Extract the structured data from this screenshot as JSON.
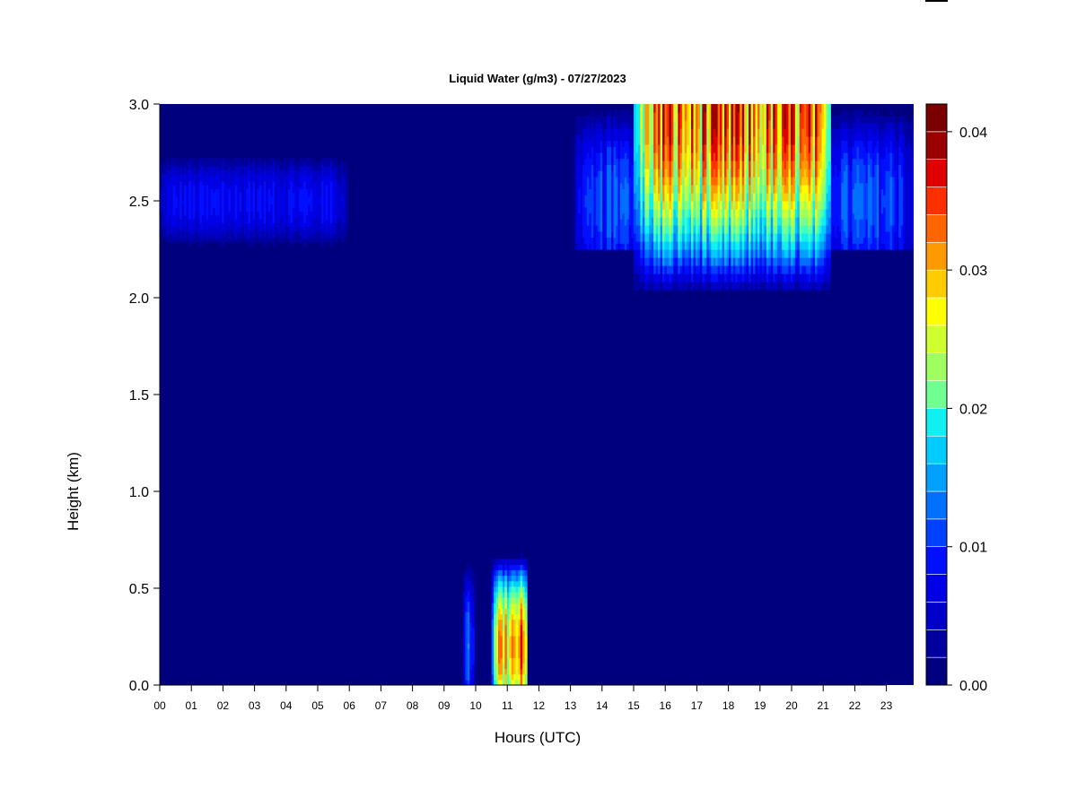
{
  "chart_data": {
    "type": "heatmap",
    "title": "Liquid Water (g/m3) - 07/27/2023",
    "xlabel": "Hours (UTC)",
    "ylabel": "Height (km)",
    "xlim": [
      0,
      23.9
    ],
    "ylim": [
      0,
      3.0
    ],
    "x_ticks": [
      "00",
      "01",
      "02",
      "03",
      "04",
      "05",
      "06",
      "07",
      "08",
      "09",
      "10",
      "11",
      "12",
      "13",
      "14",
      "15",
      "16",
      "17",
      "18",
      "19",
      "20",
      "21",
      "22",
      "23"
    ],
    "y_ticks": [
      "0.0",
      "0.5",
      "1.0",
      "1.5",
      "2.0",
      "2.5",
      "3.0"
    ],
    "colorbar": {
      "range": [
        0,
        0.042
      ],
      "ticks": [
        "0.00",
        "0.01",
        "0.02",
        "0.03",
        "0.04"
      ],
      "levels": 21,
      "colors": [
        "#00007f",
        "#0000a0",
        "#0000c8",
        "#0000e6",
        "#0010ff",
        "#0040ff",
        "#0070ff",
        "#00a0ff",
        "#00ccff",
        "#10f0f0",
        "#40ffc0",
        "#70ff90",
        "#a0ff60",
        "#d0ff30",
        "#ffff00",
        "#ffcc00",
        "#ff9900",
        "#ff6600",
        "#ff3000",
        "#e00000",
        "#9a0000",
        "#7a0000"
      ]
    },
    "regions": [
      {
        "x": [
          0.0,
          5.9
        ],
        "y": [
          2.25,
          2.72
        ],
        "peak_value": 0.01,
        "peak_height": 2.5
      },
      {
        "x": [
          9.6,
          9.9
        ],
        "y": [
          0.0,
          0.65
        ],
        "peak_value": 0.014,
        "peak_height": 0.2
      },
      {
        "x": [
          10.5,
          11.6
        ],
        "y": [
          0.0,
          0.68
        ],
        "peak_value": 0.04,
        "peak_height": 0.2
      },
      {
        "x": [
          13.1,
          23.9
        ],
        "y": [
          2.25,
          3.0
        ],
        "peak_value": 0.014,
        "peak_height": 2.5
      },
      {
        "x": [
          15.0,
          21.2
        ],
        "y": [
          2.0,
          3.0
        ],
        "peak_value": 0.042,
        "peak_height": 3.0
      }
    ]
  }
}
